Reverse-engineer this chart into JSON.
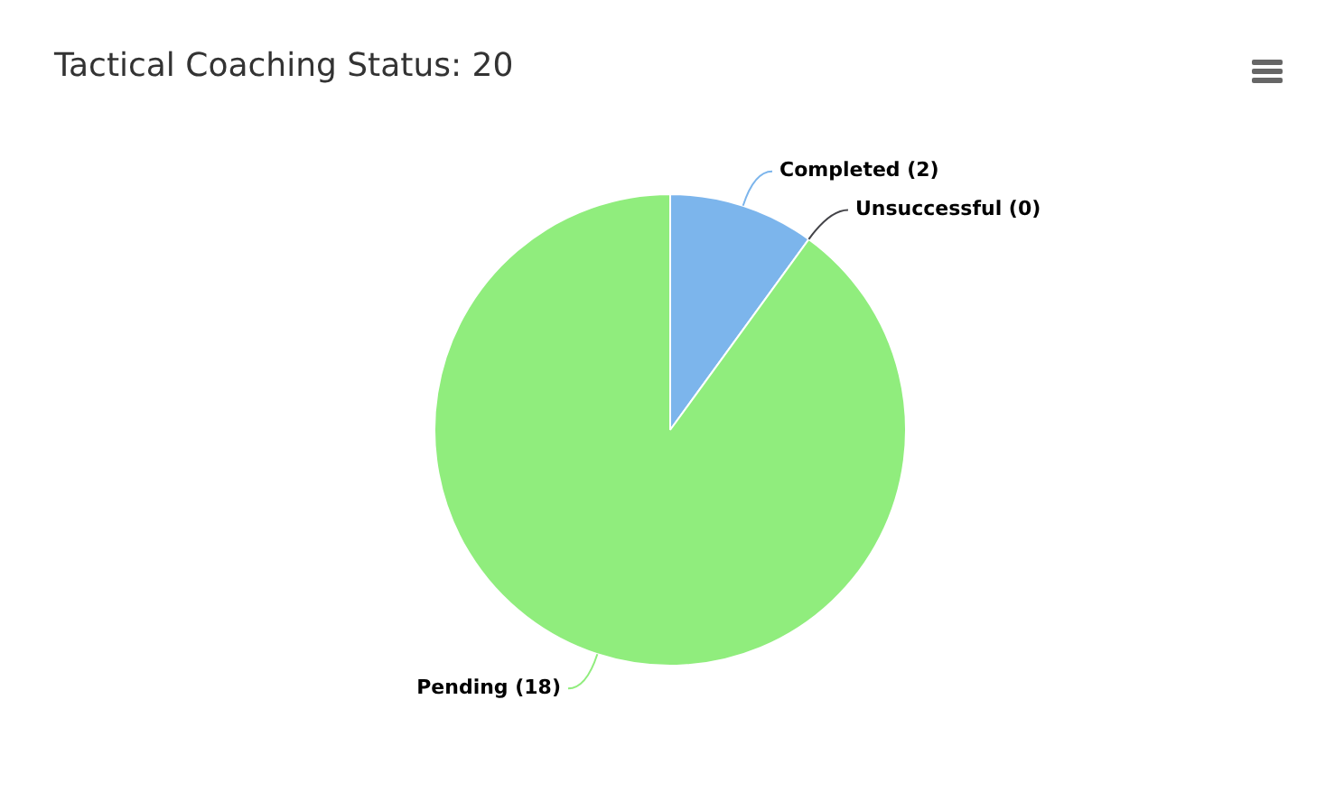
{
  "chart_data": {
    "type": "pie",
    "title": "Tactical Coaching Status: 20",
    "categories": [
      "Completed",
      "Unsuccessful",
      "Pending"
    ],
    "values": [
      2,
      0,
      18
    ],
    "value_labels": [
      "(2)",
      "(0)",
      "(18)"
    ],
    "colors": [
      "#7cb5ec",
      "#434348",
      "#90ed7d"
    ],
    "legend": false
  }
}
